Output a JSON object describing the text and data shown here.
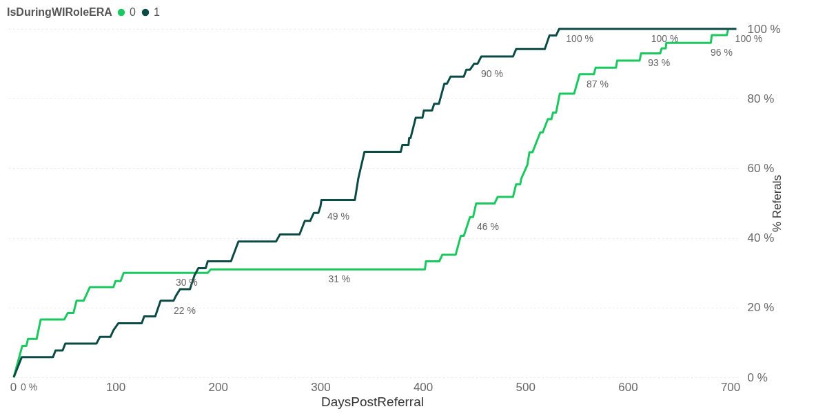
{
  "chart_data": {
    "type": "line",
    "xlabel": "DaysPostReferral",
    "ylabel": "% Referals",
    "legend_title": "IsDuringWIRoleERA",
    "legend": "top left",
    "grid": "y",
    "line_style": "solid",
    "xlim": [
      -6,
      707
    ],
    "xticks": [
      0,
      100,
      200,
      300,
      400,
      500,
      600,
      700
    ],
    "ylim": [
      0,
      100
    ],
    "yticks": [
      {
        "value": 0,
        "label": "0 %"
      },
      {
        "value": 20,
        "label": "20 %"
      },
      {
        "value": 40,
        "label": "40 %"
      },
      {
        "value": 60,
        "label": "60 %"
      },
      {
        "value": 80,
        "label": "80 %"
      },
      {
        "value": 100,
        "label": "100 %"
      }
    ],
    "series": [
      {
        "name": "0",
        "color": "#1ac85f",
        "x": [
          0.7,
          9,
          13,
          14.6,
          23,
          27,
          50,
          53.5,
          59,
          62,
          69,
          75,
          98,
          100,
          105,
          108,
          152,
          190,
          193,
          301,
          402,
          403,
          416,
          419,
          432,
          437,
          440,
          446,
          449,
          452,
          470,
          473,
          488,
          491,
          495,
          496,
          502,
          504,
          507,
          514.6,
          517,
          522,
          525.5,
          527,
          530,
          533.6,
          547.6,
          553,
          567,
          568.6,
          588.5,
          589.6,
          611.5,
          613,
          631.7,
          633,
          637,
          637.6,
          674,
          681,
          682,
          696.6,
          698
        ],
        "values": [
          0,
          9,
          9,
          11,
          11,
          16.6,
          16.6,
          18.5,
          18.5,
          22,
          22,
          25.9,
          25.9,
          27.6,
          27.6,
          30,
          30,
          30,
          31,
          31,
          31,
          33.3,
          33.3,
          35.2,
          35.2,
          40.6,
          40.6,
          46,
          46,
          49.9,
          49.9,
          51.8,
          51.8,
          55.4,
          55.4,
          57,
          61,
          64.6,
          64.6,
          70.3,
          70.3,
          74.1,
          74.1,
          76,
          76,
          81.4,
          81.4,
          87,
          87,
          88.9,
          88.9,
          90.9,
          90.9,
          93,
          93,
          94.4,
          94.4,
          96,
          96,
          96,
          98.2,
          98.2,
          100
        ],
        "value_labels": [
          "0 %",
          null,
          null,
          null,
          null,
          null,
          null,
          null,
          null,
          null,
          null,
          null,
          null,
          null,
          null,
          null,
          "30 %",
          null,
          null,
          "31 %",
          null,
          null,
          null,
          null,
          null,
          null,
          null,
          "46 %",
          null,
          null,
          null,
          null,
          null,
          null,
          null,
          null,
          null,
          null,
          null,
          null,
          null,
          null,
          null,
          null,
          null,
          null,
          null,
          "87 %",
          null,
          null,
          null,
          null,
          null,
          "93 %",
          null,
          null,
          null,
          null,
          "96 %",
          null,
          null,
          null,
          "100 %"
        ]
      },
      {
        "name": "1",
        "color": "#0b4a45",
        "x": [
          0.7,
          8.5,
          39,
          41.5,
          48.4,
          51,
          81.5,
          84.8,
          95,
          98,
          102.7,
          125.6,
          128,
          138.8,
          144,
          150,
          156.7,
          159,
          163,
          172.7,
          177,
          180.8,
          188,
          190,
          212.7,
          220,
          256.7,
          260.5,
          279.6,
          284.8,
          290,
          293.6,
          298,
          300,
          301,
          333.6,
          337,
          343,
          378.4,
          380,
          386,
          386.6,
          388,
          393,
          399.6,
          401,
          409,
          411,
          415.6,
          421,
          423.6,
          427,
          440,
          442.4,
          446,
          450,
          453.4,
          457,
          488,
          491,
          519,
          523.5,
          530,
          533,
          616,
          706
        ],
        "values": [
          0,
          5.8,
          5.8,
          7.7,
          7.7,
          9.7,
          9.7,
          11.6,
          11.6,
          13.5,
          15.5,
          15.5,
          17.5,
          17.5,
          22,
          22,
          22,
          23.4,
          25.3,
          25.3,
          29.2,
          31.3,
          31.3,
          33.3,
          33.3,
          39,
          39,
          41,
          41,
          44.9,
          44.9,
          47.2,
          47.2,
          49,
          50.9,
          50.9,
          57.1,
          64.7,
          64.7,
          66.7,
          66.7,
          68.7,
          68.7,
          74.5,
          74.5,
          76.6,
          76.6,
          78.5,
          78.5,
          84.3,
          84.3,
          86.3,
          86.3,
          88.3,
          88.3,
          90,
          90,
          92.1,
          92.1,
          94.2,
          94.2,
          98.1,
          98.1,
          100,
          100,
          100
        ],
        "value_labels": [
          null,
          null,
          null,
          null,
          null,
          null,
          null,
          null,
          null,
          null,
          null,
          null,
          null,
          null,
          null,
          "22 %",
          null,
          null,
          null,
          null,
          null,
          null,
          null,
          null,
          null,
          null,
          null,
          null,
          null,
          null,
          null,
          null,
          null,
          "49 %",
          null,
          null,
          null,
          null,
          null,
          null,
          null,
          null,
          null,
          null,
          null,
          null,
          null,
          null,
          null,
          null,
          null,
          null,
          null,
          null,
          null,
          "90 %",
          null,
          null,
          null,
          null,
          null,
          null,
          null,
          "100 %",
          "100 %",
          null
        ]
      }
    ]
  }
}
